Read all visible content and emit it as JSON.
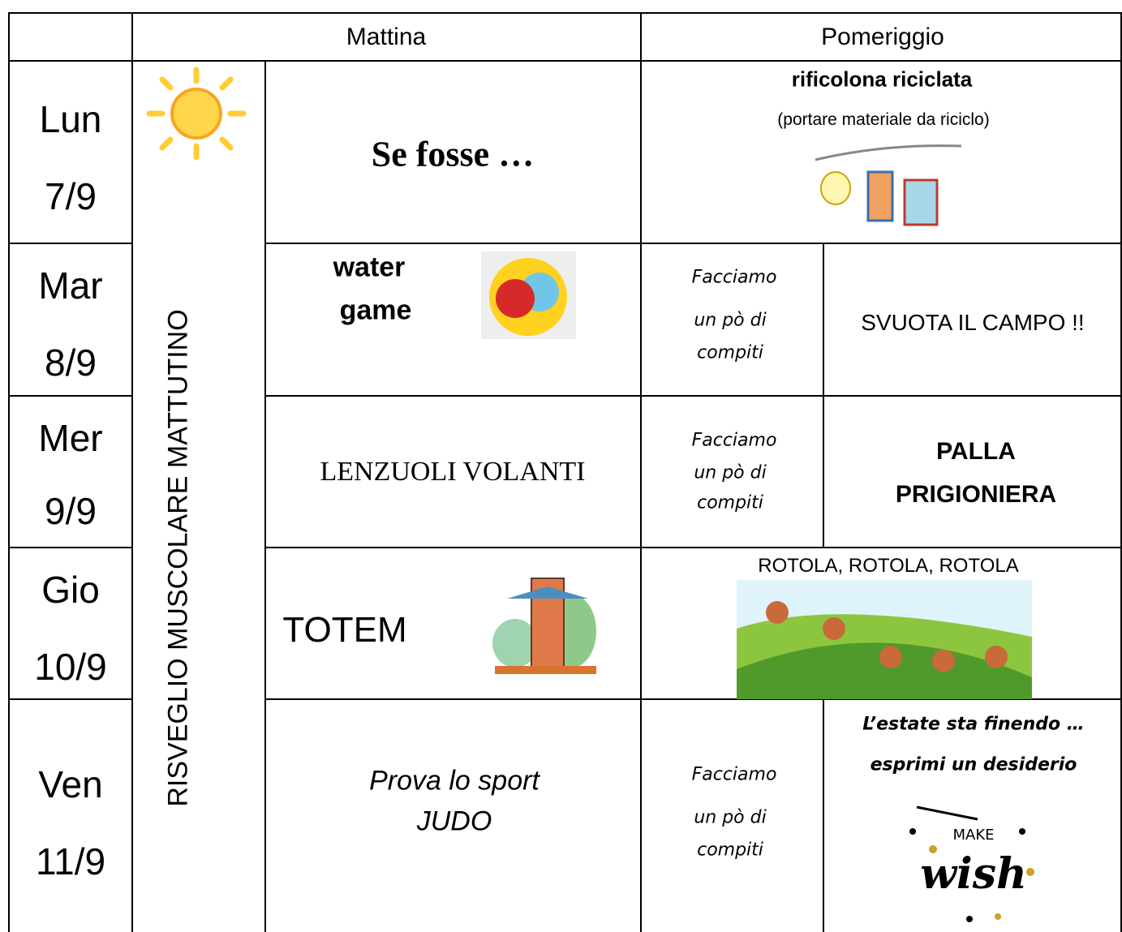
{
  "header": {
    "morning": "Mattina",
    "afternoon": "Pomeriggio"
  },
  "side_label": "RISVEGLIO MUSCOLARE MATTUTINO",
  "rows": [
    {
      "day": "Lun",
      "date": "7/9",
      "morning": "Se fosse …",
      "afternoon": {
        "title": "rificolona riciclata",
        "note": "(portare materiale da riciclo)"
      }
    },
    {
      "day": "Mar",
      "date": "8/9",
      "morning": [
        "water",
        "game"
      ],
      "homework": [
        "Facciamo",
        "un pò di",
        "compiti"
      ],
      "afternoon": "SVUOTA IL CAMPO !!"
    },
    {
      "day": "Mer",
      "date": "9/9",
      "morning": "LENZUOLI VOLANTI",
      "homework": [
        "Facciamo",
        "un pò di",
        "compiti"
      ],
      "afternoon": [
        "PALLA",
        "PRIGIONIERA"
      ]
    },
    {
      "day": "Gio",
      "date": "10/9",
      "morning": "TOTEM",
      "afternoon": "ROTOLA, ROTOLA, ROTOLA"
    },
    {
      "day": "Ven",
      "date": "11/9",
      "morning": [
        "Prova lo sport",
        "JUDO"
      ],
      "homework": [
        "Facciamo",
        "un pò di",
        "compiti"
      ],
      "afternoon": {
        "lines": [
          "L’estate sta finendo …",
          "esprimi un desiderio"
        ],
        "image_text": [
          "MAKE",
          "wish"
        ]
      }
    }
  ]
}
